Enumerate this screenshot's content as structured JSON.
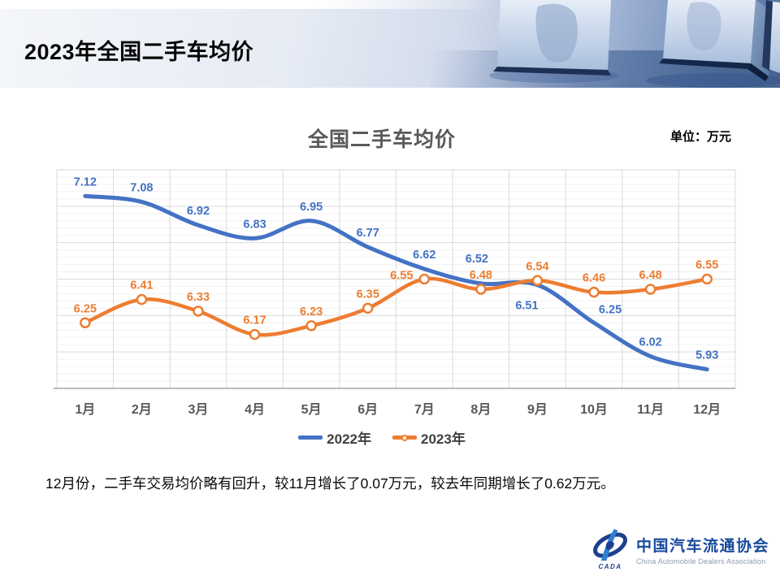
{
  "header": {
    "title": "2023年全国二手车均价"
  },
  "chart": {
    "unit_label": "单位：万元"
  },
  "chart_data": {
    "type": "line",
    "title": "全国二手车均价",
    "categories": [
      "1月",
      "2月",
      "3月",
      "4月",
      "5月",
      "6月",
      "7月",
      "8月",
      "9月",
      "10月",
      "11月",
      "12月"
    ],
    "series": [
      {
        "name": "2022年",
        "color": "#4472C4",
        "marker": false,
        "smooth": true,
        "values": [
          7.12,
          7.08,
          6.92,
          6.83,
          6.95,
          6.77,
          6.62,
          6.52,
          6.51,
          6.25,
          6.02,
          5.93
        ]
      },
      {
        "name": "2023年",
        "color": "#ED7D31",
        "marker": true,
        "smooth": true,
        "values": [
          6.25,
          6.41,
          6.33,
          6.17,
          6.23,
          6.35,
          6.55,
          6.48,
          6.54,
          6.46,
          6.48,
          6.55
        ]
      }
    ],
    "xlabel": "",
    "ylabel": "",
    "ylim": [
      5.8,
      7.3
    ],
    "grid": {
      "show": true,
      "minor_step": 0.05,
      "major_step": 0.25
    },
    "legend_position": "bottom",
    "label_offsets": {
      "0": {
        "7": [
          -5,
          -31
        ],
        "8": [
          -13,
          25
        ],
        "9": [
          20,
          -17
        ]
      },
      "1": {
        "6": [
          -28,
          -5
        ]
      }
    }
  },
  "footer": {
    "commentary": "12月份，二手车交易均价略有回升，较11月增长了0.07万元，较去年同期增长了0.62万元。"
  },
  "logo": {
    "abbr": "CADA",
    "cn": "中国汽车流通协会",
    "en": "China Automobile Dealers Association",
    "color": "#17499c"
  }
}
